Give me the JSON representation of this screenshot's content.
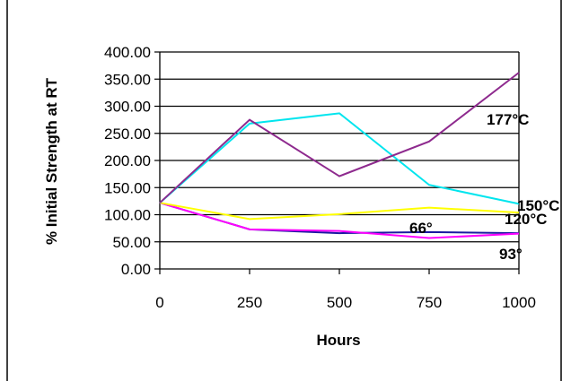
{
  "chart_data": {
    "type": "line",
    "title": "",
    "xlabel": "Hours",
    "ylabel": "% Initial Strength at RT",
    "x": [
      0,
      250,
      500,
      750,
      1000
    ],
    "x_tick_labels": [
      "0",
      "250",
      "500",
      "750",
      "1000"
    ],
    "ylim": [
      0,
      400
    ],
    "y_tick_labels": [
      "0.00",
      "50.00",
      "100.00",
      "150.00",
      "200.00",
      "250.00",
      "300.00",
      "350.00",
      "400.00"
    ],
    "grid": "horizontal",
    "series": [
      {
        "name": "66°",
        "color": "#1a1aa0",
        "values": [
          122,
          73,
          66,
          68,
          66
        ]
      },
      {
        "name": "93°",
        "color": "#ff00ff",
        "values": [
          122,
          73,
          70,
          57,
          65
        ]
      },
      {
        "name": "120°C",
        "color": "#ffff00",
        "values": [
          122,
          92,
          101,
          113,
          104
        ]
      },
      {
        "name": "150°C",
        "color": "#00e5ee",
        "values": [
          122,
          268,
          287,
          155,
          120
        ]
      },
      {
        "name": "177°C",
        "color": "#8e2a8e",
        "values": [
          122,
          275,
          171,
          235,
          362
        ]
      }
    ]
  }
}
